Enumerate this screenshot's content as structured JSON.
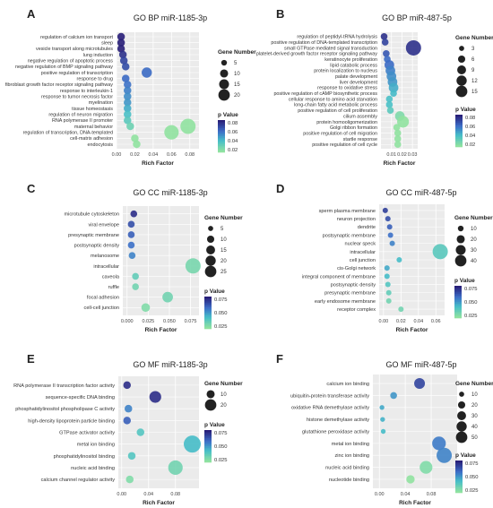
{
  "figure": {
    "panels": [
      "A",
      "B",
      "C",
      "D",
      "E",
      "F"
    ]
  },
  "chart_data": [
    {
      "panel": "A",
      "type": "scatter",
      "title": "GO BP miR-1185-3p",
      "xlabel": "Rich Factor",
      "xlim": [
        0,
        0.09
      ],
      "xticks": [
        0.0,
        0.02,
        0.04,
        0.06,
        0.08
      ],
      "xtick_labels": [
        "0.00",
        "0.02",
        "0.04",
        "0.06",
        "0.08"
      ],
      "categories": [
        "regulation of calcium ion transport",
        "sleep",
        "vesicle transport along microtubules",
        "lung induction",
        "negative regulation of apoptotic process",
        "negative regulation of BMP signaling pathway",
        "positive regulation of transcription",
        "response to drug",
        "fibroblast growth factor receptor signaling pathway",
        "response to interleukin-1",
        "response to tumor necrosis factor",
        "myelination",
        "tissue homeostasis",
        "regulation of neuron migration",
        "RNA polymerase II promoter",
        "maternal behavior",
        "regulation of transcription, DNA-templated",
        "cell-matrix adhesion",
        "endocytosis"
      ],
      "rich_factor": [
        0.005,
        0.005,
        0.005,
        0.007,
        0.008,
        0.01,
        0.033,
        0.01,
        0.012,
        0.012,
        0.012,
        0.012,
        0.012,
        0.012,
        0.012,
        0.015,
        0.06,
        0.02,
        0.022
      ],
      "gene_number": [
        5,
        5,
        5,
        5,
        5,
        5,
        9,
        5,
        5,
        5,
        5,
        5,
        5,
        5,
        5,
        5,
        18,
        5,
        5
      ],
      "p_value": [
        0.085,
        0.082,
        0.08,
        0.075,
        0.07,
        0.068,
        0.06,
        0.06,
        0.058,
        0.055,
        0.052,
        0.05,
        0.045,
        0.04,
        0.035,
        0.03,
        0.02,
        0.02,
        0.015
      ],
      "extra_points": [
        {
          "rich_factor": 0.078,
          "gene_number": 20,
          "p_value": 0.018,
          "row": 15
        }
      ],
      "size_legend": {
        "title": "Gene Number",
        "values": [
          5,
          10,
          15,
          20
        ]
      },
      "color_legend": {
        "title": "p Value",
        "ticks": [
          "0.08",
          "0.06",
          "0.04",
          "0.02"
        ],
        "min": 0.02,
        "max": 0.08
      }
    },
    {
      "panel": "B",
      "type": "scatter",
      "title": "GO BP miR-487-5p",
      "xlabel": "Rich Factor",
      "xlim": [
        0,
        0.035
      ],
      "xticks": [
        0.01,
        0.02,
        0.03
      ],
      "xtick_labels": [
        "0.01",
        "0.02",
        "0.03"
      ],
      "categories": [
        "regulation of peptidyl-tRNA hydrolysis",
        "positive regulation of DNA-templated transcription",
        "small GTPase mediated signal transduction",
        "platelet-derived growth factor receptor signaling pathway",
        "keratinocyte proliferation",
        "lipid catabolic process",
        "protein localization to nucleus",
        "palate development",
        "liver development",
        "response to oxidative stress",
        "positive regulation of cAMP biosynthetic process",
        "cellular response to amino acid starvation",
        "long-chain fatty acid metabolic process",
        "positive regulation of cell proliferation",
        "cilium assembly",
        "protein homooligomerization",
        "Golgi ribbon formation",
        "positive regulation of cell migration",
        "startle response",
        "positive regulation of cell cycle"
      ],
      "rich_factor": [
        0.003,
        0.004,
        0.031,
        0.005,
        0.006,
        0.008,
        0.009,
        0.01,
        0.011,
        0.012,
        0.012,
        0.008,
        0.008,
        0.009,
        0.018,
        0.021,
        0.015,
        0.016,
        0.016,
        0.016
      ],
      "gene_number": [
        3,
        3,
        15,
        3,
        3,
        6,
        6,
        6,
        6,
        6,
        3,
        3,
        3,
        3,
        6,
        9,
        3,
        3,
        3,
        3
      ],
      "p_value": [
        0.075,
        0.07,
        0.075,
        0.065,
        0.06,
        0.06,
        0.055,
        0.052,
        0.05,
        0.045,
        0.042,
        0.04,
        0.04,
        0.035,
        0.025,
        0.02,
        0.02,
        0.02,
        0.02,
        0.02
      ],
      "size_legend": {
        "title": "Gene Number",
        "values": [
          3,
          6,
          9,
          12,
          15
        ]
      },
      "color_legend": {
        "title": "p Value",
        "ticks": [
          "0.08",
          "0.06",
          "0.04",
          "0.02"
        ],
        "min": 0.02,
        "max": 0.08
      }
    },
    {
      "panel": "C",
      "type": "scatter",
      "title": "GO CC miR-1185-3p",
      "xlabel": "Rich Factor",
      "xlim": [
        -0.005,
        0.085
      ],
      "xticks": [
        0.0,
        0.025,
        0.05,
        0.075
      ],
      "xtick_labels": [
        "0.000",
        "0.025",
        "0.050",
        "0.075"
      ],
      "categories": [
        "microtubule cytoskeleton",
        "viral envelope",
        "presynaptic membrane",
        "postsynaptic density",
        "melanosome",
        "intracellular",
        "caveola",
        "ruffle",
        "focal adhesion",
        "cell-cell junction"
      ],
      "rich_factor": [
        0.008,
        0.005,
        0.005,
        0.005,
        0.006,
        0.078,
        0.01,
        0.01,
        0.048,
        0.022
      ],
      "gene_number": [
        5,
        5,
        5,
        5,
        5,
        25,
        5,
        5,
        12,
        8
      ],
      "p_value": [
        0.085,
        0.075,
        0.07,
        0.065,
        0.06,
        0.028,
        0.035,
        0.03,
        0.03,
        0.025
      ],
      "size_legend": {
        "title": "Gene Number",
        "values": [
          5,
          10,
          15,
          20,
          25
        ]
      },
      "color_legend": {
        "title": "p Value",
        "ticks": [
          "0.075",
          "0.050",
          "0.025"
        ],
        "min": 0.02,
        "max": 0.09
      }
    },
    {
      "panel": "D",
      "type": "scatter",
      "title": "GO CC miR-487-5p",
      "xlabel": "Rich Factor",
      "xlim": [
        -0.005,
        0.07
      ],
      "xticks": [
        0.0,
        0.02,
        0.04,
        0.06
      ],
      "xtick_labels": [
        "0.00",
        "0.02",
        "0.04",
        "0.06"
      ],
      "categories": [
        "sperm plasma membrane",
        "neuron projection",
        "dendrite",
        "postsynaptic membrane",
        "nuclear speck",
        "intracellular",
        "cell junction",
        "cis-Golgi network",
        "integral component of membrane",
        "postsynaptic density",
        "presynaptic membrane",
        "early endosome membrane",
        "receptor complex"
      ],
      "rich_factor": [
        0.002,
        0.005,
        0.007,
        0.008,
        0.01,
        0.065,
        0.018,
        0.004,
        0.004,
        0.005,
        0.006,
        0.006,
        0.02
      ],
      "gene_number": [
        5,
        5,
        5,
        5,
        5,
        40,
        5,
        5,
        5,
        5,
        5,
        5,
        5
      ],
      "p_value": [
        0.08,
        0.075,
        0.07,
        0.065,
        0.06,
        0.038,
        0.045,
        0.05,
        0.045,
        0.04,
        0.035,
        0.03,
        0.03
      ],
      "size_legend": {
        "title": "Gene Number",
        "values": [
          10,
          20,
          30,
          40
        ]
      },
      "color_legend": {
        "title": "p Value",
        "ticks": [
          "0.075",
          "0.050",
          "0.025"
        ],
        "min": 0.02,
        "max": 0.09
      }
    },
    {
      "panel": "E",
      "type": "scatter",
      "title": "GO MF miR-1185-3p",
      "xlabel": "Rich Factor",
      "xlim": [
        -0.005,
        0.115
      ],
      "xticks": [
        0.0,
        0.04,
        0.08
      ],
      "xtick_labels": [
        "0.00",
        "0.04",
        "0.08"
      ],
      "categories": [
        "RNA polymerase II transcription factor activity",
        "sequence-specific DNA binding",
        "phosphatidylinositol phospholipase C activity",
        "high-density lipoprotein particle binding",
        "GTPase activator activity",
        "metal ion binding",
        "phosphatidylinositol binding",
        "nucleic acid binding",
        "calcium channel regulator activity"
      ],
      "rich_factor": [
        0.008,
        0.05,
        0.01,
        0.008,
        0.028,
        0.105,
        0.015,
        0.08,
        0.012
      ],
      "gene_number": [
        5,
        12,
        5,
        5,
        5,
        25,
        5,
        18,
        5
      ],
      "p_value": [
        0.085,
        0.085,
        0.06,
        0.07,
        0.04,
        0.045,
        0.04,
        0.03,
        0.025
      ],
      "size_legend": {
        "title": "Gene Number",
        "values": [
          10,
          20
        ]
      },
      "color_legend": {
        "title": "p Value",
        "ticks": [
          "0.075",
          "0.050",
          "0.025"
        ],
        "min": 0.02,
        "max": 0.09
      }
    },
    {
      "panel": "F",
      "type": "scatter",
      "title": "GO MF miR-487-5p",
      "xlabel": "Rich Factor",
      "xlim": [
        -0.01,
        0.12
      ],
      "xticks": [
        0.0,
        0.04,
        0.08
      ],
      "xtick_labels": [
        "0.00",
        "0.04",
        "0.08"
      ],
      "categories": [
        "calcium ion binding",
        "ubiquitin-protein transferase activity",
        "oxidative RNA demethylase activity",
        "histone demethylase activity",
        "glutathione peroxidase activity",
        "metal ion binding",
        "zinc ion binding",
        "nucleic acid binding",
        "nucleotide binding"
      ],
      "rich_factor": [
        0.062,
        0.022,
        0.004,
        0.005,
        0.006,
        0.092,
        0.1,
        0.072,
        0.048
      ],
      "gene_number": [
        25,
        10,
        5,
        5,
        5,
        40,
        50,
        35,
        15
      ],
      "p_value": [
        0.078,
        0.055,
        0.05,
        0.048,
        0.045,
        0.062,
        0.06,
        0.025,
        0.02
      ],
      "size_legend": {
        "title": "Gene Number",
        "values": [
          10,
          20,
          30,
          40,
          50
        ]
      },
      "color_legend": {
        "title": "p Value",
        "ticks": [
          "0.075",
          "0.050",
          "0.025"
        ],
        "min": 0.02,
        "max": 0.09
      }
    }
  ]
}
